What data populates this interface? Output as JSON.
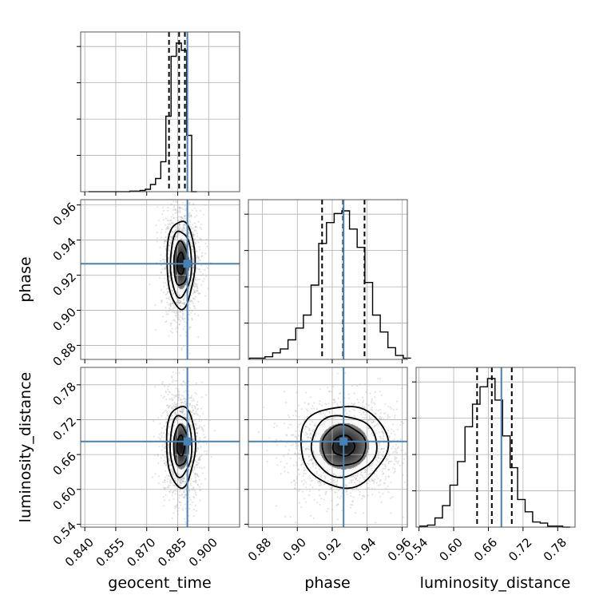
{
  "chart_data": {
    "type": "corner",
    "parameters": [
      "geocent_time",
      "phase",
      "luminosity_distance"
    ],
    "axis_labels": {
      "geocent_time": "geocent_time",
      "phase": "phase",
      "luminosity_distance": "luminosity_distance"
    },
    "axis_ranges": {
      "geocent_time": [
        0.838,
        0.915
      ],
      "phase": [
        0.872,
        0.963
      ],
      "luminosity_distance": [
        0.535,
        0.81
      ]
    },
    "ticks": {
      "geocent_time": [
        "0.840",
        "0.855",
        "0.870",
        "0.885",
        "0.900"
      ],
      "phase": [
        "0.88",
        "0.90",
        "0.92",
        "0.94",
        "0.96"
      ],
      "luminosity_distance": [
        "0.54",
        "0.60",
        "0.66",
        "0.72",
        "0.78"
      ]
    },
    "truth": {
      "geocent_time": 0.8897,
      "phase": 0.9265,
      "luminosity_distance": 0.6825
    },
    "quantiles": {
      "geocent_time": [
        0.8808,
        0.8857,
        0.8885
      ],
      "phase": [
        0.9142,
        0.9262,
        0.9385
      ],
      "luminosity_distance": [
        0.6405,
        0.666,
        0.7005
      ]
    },
    "histograms": {
      "geocent_time": {
        "bin_edges": [
          0.8418,
          0.8443,
          0.8468,
          0.8493,
          0.8518,
          0.8543,
          0.8568,
          0.8593,
          0.8618,
          0.8643,
          0.8668,
          0.8693,
          0.8718,
          0.8743,
          0.8768,
          0.8793,
          0.8818,
          0.8843,
          0.8868,
          0.8893,
          0.8918,
          0.8943
        ],
        "counts": [
          0,
          0,
          0,
          0,
          0,
          0,
          0,
          0,
          0.5,
          0.5,
          1,
          2,
          6,
          11,
          25,
          63,
          113,
          124,
          118,
          47,
          0
        ]
      },
      "phase": {
        "bin_edges": [
          0.8727,
          0.8771,
          0.8815,
          0.8859,
          0.8903,
          0.8947,
          0.8991,
          0.9035,
          0.9079,
          0.9123,
          0.9167,
          0.9211,
          0.9255,
          0.9299,
          0.9343,
          0.9387,
          0.9431,
          0.9475,
          0.9519,
          0.9563,
          0.9607,
          0.9651
        ],
        "counts": [
          1,
          1,
          2,
          5,
          8,
          15,
          24,
          34,
          57,
          89,
          105,
          112,
          114,
          100,
          86,
          59,
          34,
          21,
          9,
          3,
          1
        ]
      },
      "luminosity_distance": {
        "bin_edges": [
          0.5416,
          0.5546,
          0.5676,
          0.5806,
          0.5936,
          0.6066,
          0.6196,
          0.6326,
          0.6456,
          0.6586,
          0.6716,
          0.6846,
          0.6976,
          0.7106,
          0.7236,
          0.7366,
          0.7496,
          0.7626,
          0.7756,
          0.7886,
          0.8016
        ],
        "counts": [
          1,
          2,
          9,
          21,
          41,
          64,
          98,
          120,
          137,
          145,
          124,
          89,
          58,
          27,
          15,
          5,
          4,
          1,
          1,
          0
        ]
      }
    },
    "two_d": {
      "geocent_time_vs_phase": {
        "x_param": "geocent_time",
        "y_param": "phase",
        "center": [
          0.8865,
          0.9265
        ],
        "spread": [
          0.0034,
          0.0125
        ]
      },
      "geocent_time_vs_luminosity_distance": {
        "x_param": "geocent_time",
        "y_param": "luminosity_distance",
        "center": [
          0.8865,
          0.675
        ],
        "spread": [
          0.0035,
          0.035
        ]
      },
      "phase_vs_luminosity_distance": {
        "x_param": "phase",
        "y_param": "luminosity_distance",
        "center": [
          0.9265,
          0.675
        ],
        "spread": [
          0.0125,
          0.035
        ]
      }
    },
    "grid": true,
    "colors": {
      "truth": "#4682b4",
      "line": "#000000",
      "grid": "#b0b0b0",
      "scatter": "#9a9a9a"
    }
  }
}
